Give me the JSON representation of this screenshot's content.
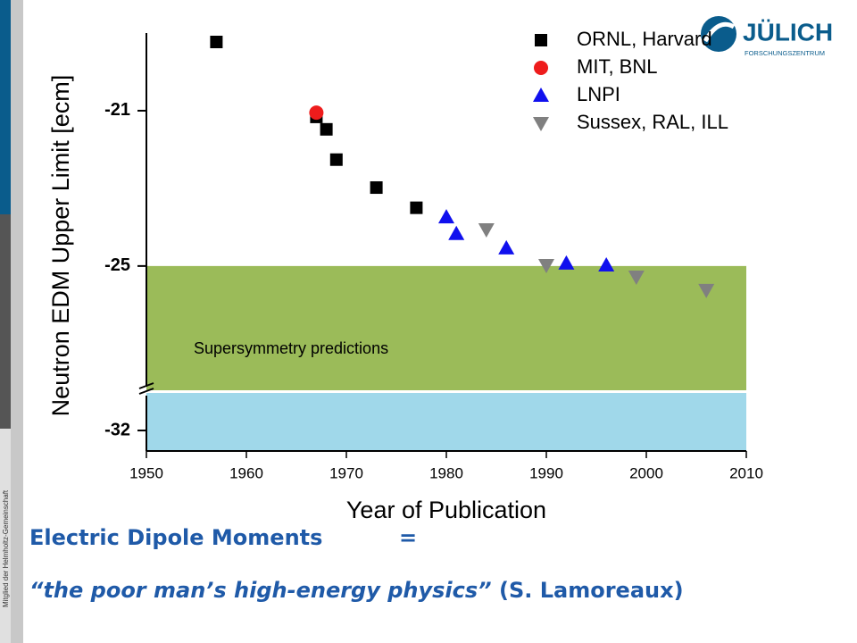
{
  "chart_data": {
    "type": "scatter",
    "ylabel": "Neutron EDM Upper Limit [ecm]",
    "xlabel": "Year of Publication",
    "xlim": [
      1950,
      2010
    ],
    "xticks": [
      1950,
      1960,
      1970,
      1980,
      1990,
      2000,
      2010
    ],
    "ylim": [
      -28.2,
      -19
    ],
    "ylim_lower": [
      -32.53,
      -31.03
    ],
    "yticks": [
      -21,
      -25,
      -32
    ],
    "bands": [
      {
        "label": "Supersymmetry predictions",
        "range": [
          -25,
          -28.2
        ],
        "color": "#9bbb59"
      },
      {
        "range": [
          -31.03,
          -32.53
        ],
        "color": "#a0d8ea"
      }
    ],
    "legend": "top-right",
    "series": [
      {
        "name": "ORNL, Harvard",
        "color": "#000000",
        "marker": "square",
        "x": [
          1957,
          1967,
          1968,
          1969,
          1973,
          1977
        ],
        "values": [
          -19.23,
          -21.16,
          -21.48,
          -22.26,
          -22.98,
          -23.5
        ]
      },
      {
        "name": "MIT, BNL",
        "color": "#ee1c1c",
        "marker": "circle",
        "x": [
          1967
        ],
        "values": [
          -21.05
        ]
      },
      {
        "name": "LNPI",
        "color": "#1010ee",
        "marker": "triangle-up",
        "x": [
          1980,
          1981,
          1986,
          1992,
          1996
        ],
        "values": [
          -23.74,
          -24.17,
          -24.54,
          -24.93,
          -24.98
        ]
      },
      {
        "name": "Sussex, RAL, ILL",
        "color": "#808080",
        "marker": "triangle-down",
        "x": [
          1984,
          1990,
          1999,
          2006
        ],
        "values": [
          -24.06,
          -24.98,
          -25.28,
          -25.62
        ]
      }
    ]
  },
  "logo": {
    "name": "JÜLICH",
    "sub": "FORSCHUNGSZENTRUM"
  },
  "sidebar": "Mitglied der Helmholtz-Gemeinschaft",
  "slide": {
    "heading": "Electric Dipole Moments",
    "equals": "=",
    "quote": "“the poor man’s high-energy physics”",
    "attribution": " (S. Lamoreaux)"
  }
}
